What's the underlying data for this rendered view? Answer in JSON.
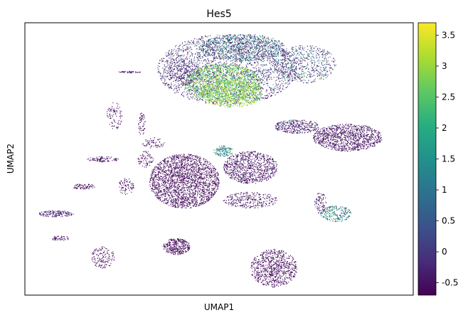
{
  "chart_data": {
    "type": "scatter",
    "title": "Hes5",
    "xlabel": "UMAP1",
    "ylabel": "UMAP2",
    "x_ticks_shown": false,
    "y_ticks_shown": false,
    "grid": false,
    "colormap": "viridis",
    "colorbar": {
      "range": [
        -0.7,
        3.7
      ],
      "ticks": [
        -0.5,
        0,
        0.5,
        1,
        1.5,
        2,
        2.5,
        3,
        3.5
      ],
      "tick_labels": [
        "-0.5",
        "0",
        "0.5",
        "1",
        "1.5",
        "2",
        "2.5",
        "3",
        "3.5"
      ]
    },
    "clusters": [
      {
        "id": "upper-large-dark",
        "cx": 0.52,
        "cy": 0.83,
        "rx": 0.18,
        "ry": 0.13,
        "value": -0.2,
        "spread": 0.8,
        "n": 2600
      },
      {
        "id": "upper-top-mixed",
        "cx": 0.56,
        "cy": 0.91,
        "rx": 0.11,
        "ry": 0.05,
        "value": 0.8,
        "spread": 1.0,
        "n": 900
      },
      {
        "id": "upper-right-lobe",
        "cx": 0.72,
        "cy": 0.85,
        "rx": 0.08,
        "ry": 0.07,
        "value": 0.3,
        "spread": 0.9,
        "n": 600
      },
      {
        "id": "upper-high-expression",
        "cx": 0.51,
        "cy": 0.78,
        "rx": 0.1,
        "ry": 0.07,
        "value": 2.6,
        "spread": 0.5,
        "n": 1500
      },
      {
        "id": "upper-green-core",
        "cx": 0.53,
        "cy": 0.74,
        "rx": 0.08,
        "ry": 0.05,
        "value": 2.9,
        "spread": 0.4,
        "n": 700
      },
      {
        "id": "upper-left-arm",
        "cx": 0.41,
        "cy": 0.82,
        "rx": 0.04,
        "ry": 0.05,
        "value": -0.3,
        "spread": 0.4,
        "n": 250
      },
      {
        "id": "right-stream",
        "cx": 0.7,
        "cy": 0.62,
        "rx": 0.06,
        "ry": 0.025,
        "value": -0.4,
        "spread": 0.5,
        "n": 350
      },
      {
        "id": "right-wedge",
        "cx": 0.83,
        "cy": 0.58,
        "rx": 0.09,
        "ry": 0.05,
        "value": -0.5,
        "spread": 0.2,
        "n": 1100
      },
      {
        "id": "middle-left-large",
        "cx": 0.41,
        "cy": 0.42,
        "rx": 0.09,
        "ry": 0.1,
        "value": -0.6,
        "spread": 0.15,
        "n": 2200
      },
      {
        "id": "middle-right",
        "cx": 0.58,
        "cy": 0.47,
        "rx": 0.07,
        "ry": 0.06,
        "value": -0.55,
        "spread": 0.3,
        "n": 900
      },
      {
        "id": "middle-teal-patch",
        "cx": 0.51,
        "cy": 0.53,
        "rx": 0.025,
        "ry": 0.02,
        "value": 1.3,
        "spread": 0.6,
        "n": 150
      },
      {
        "id": "middle-tail",
        "cx": 0.58,
        "cy": 0.35,
        "rx": 0.07,
        "ry": 0.03,
        "value": -0.5,
        "spread": 0.2,
        "n": 300
      },
      {
        "id": "lower-left-blob",
        "cx": 0.39,
        "cy": 0.18,
        "rx": 0.035,
        "ry": 0.03,
        "value": -0.6,
        "spread": 0.1,
        "n": 350
      },
      {
        "id": "bottom-blob",
        "cx": 0.64,
        "cy": 0.1,
        "rx": 0.06,
        "ry": 0.07,
        "value": -0.6,
        "spread": 0.12,
        "n": 800
      },
      {
        "id": "right-teal-cluster",
        "cx": 0.8,
        "cy": 0.3,
        "rx": 0.04,
        "ry": 0.03,
        "value": 1.2,
        "spread": 0.8,
        "n": 250
      },
      {
        "id": "right-small-dark",
        "cx": 0.76,
        "cy": 0.34,
        "rx": 0.015,
        "ry": 0.04,
        "value": -0.5,
        "spread": 0.2,
        "n": 90
      },
      {
        "id": "left-strip-1",
        "cx": 0.08,
        "cy": 0.3,
        "rx": 0.045,
        "ry": 0.012,
        "value": -0.4,
        "spread": 0.3,
        "n": 160
      },
      {
        "id": "left-strip-2",
        "cx": 0.15,
        "cy": 0.4,
        "rx": 0.03,
        "ry": 0.01,
        "value": -0.6,
        "spread": 0.1,
        "n": 80
      },
      {
        "id": "left-strip-3",
        "cx": 0.2,
        "cy": 0.5,
        "rx": 0.04,
        "ry": 0.01,
        "value": -0.6,
        "spread": 0.1,
        "n": 100
      },
      {
        "id": "left-diagonal-1",
        "cx": 0.23,
        "cy": 0.66,
        "rx": 0.02,
        "ry": 0.05,
        "value": -0.6,
        "spread": 0.1,
        "n": 90
      },
      {
        "id": "left-diagonal-2",
        "cx": 0.3,
        "cy": 0.63,
        "rx": 0.01,
        "ry": 0.04,
        "value": -0.6,
        "spread": 0.1,
        "n": 60
      },
      {
        "id": "left-small-1",
        "cx": 0.26,
        "cy": 0.4,
        "rx": 0.02,
        "ry": 0.03,
        "value": -0.6,
        "spread": 0.1,
        "n": 80
      },
      {
        "id": "left-small-2",
        "cx": 0.31,
        "cy": 0.5,
        "rx": 0.02,
        "ry": 0.03,
        "value": -0.6,
        "spread": 0.1,
        "n": 80
      },
      {
        "id": "left-low-strip",
        "cx": 0.09,
        "cy": 0.21,
        "rx": 0.025,
        "ry": 0.008,
        "value": -0.6,
        "spread": 0.1,
        "n": 50
      },
      {
        "id": "left-low-blob",
        "cx": 0.2,
        "cy": 0.14,
        "rx": 0.03,
        "ry": 0.04,
        "value": -0.6,
        "spread": 0.1,
        "n": 150
      },
      {
        "id": "top-left-dash",
        "cx": 0.27,
        "cy": 0.82,
        "rx": 0.03,
        "ry": 0.004,
        "value": -0.6,
        "spread": 0.1,
        "n": 40
      },
      {
        "id": "center-dots",
        "cx": 0.33,
        "cy": 0.56,
        "rx": 0.03,
        "ry": 0.02,
        "value": -0.5,
        "spread": 0.3,
        "n": 70
      }
    ]
  }
}
